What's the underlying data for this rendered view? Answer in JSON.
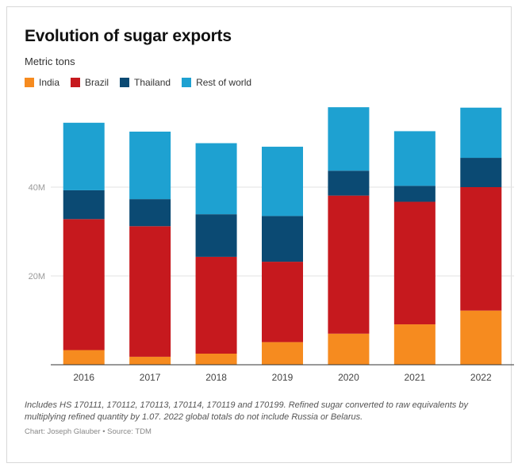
{
  "title": "Evolution of sugar exports",
  "subtitle": "Metric tons",
  "notes": "Includes HS 170111, 170112, 170113, 170114, 170119 and 170199. Refined sugar converted to raw equivalents by multiplying refined quantity by 1.07. 2022 global totals do not include Russia or Belarus.",
  "credit": "Chart: Joseph Glauber • Source: TDM",
  "colors": {
    "india": "#f68b1f",
    "brazil": "#c6191e",
    "thailand": "#0b4a73",
    "rest": "#1ea1d1"
  },
  "chart_data": {
    "type": "bar",
    "stacked": true,
    "categories": [
      "2016",
      "2017",
      "2018",
      "2019",
      "2020",
      "2021",
      "2022"
    ],
    "series": [
      {
        "name": "India",
        "color": "#f68b1f",
        "values": [
          3.3,
          1.8,
          2.5,
          5.1,
          7.0,
          9.1,
          12.2
        ]
      },
      {
        "name": "Brazil",
        "color": "#c6191e",
        "values": [
          29.5,
          29.4,
          21.8,
          18.1,
          31.1,
          27.6,
          27.8
        ]
      },
      {
        "name": "Thailand",
        "color": "#0b4a73",
        "values": [
          6.5,
          6.1,
          9.6,
          10.3,
          5.6,
          3.6,
          6.6
        ]
      },
      {
        "name": "Rest of world",
        "color": "#1ea1d1",
        "values": [
          15.2,
          15.2,
          16.0,
          15.6,
          14.3,
          12.3,
          11.3
        ]
      }
    ],
    "yticks": [
      20,
      40
    ],
    "ytick_labels": [
      "20M",
      "40M"
    ],
    "ylim": [
      0,
      58
    ],
    "grid": true,
    "legend": "top-left",
    "xlabel": "",
    "ylabel": ""
  }
}
